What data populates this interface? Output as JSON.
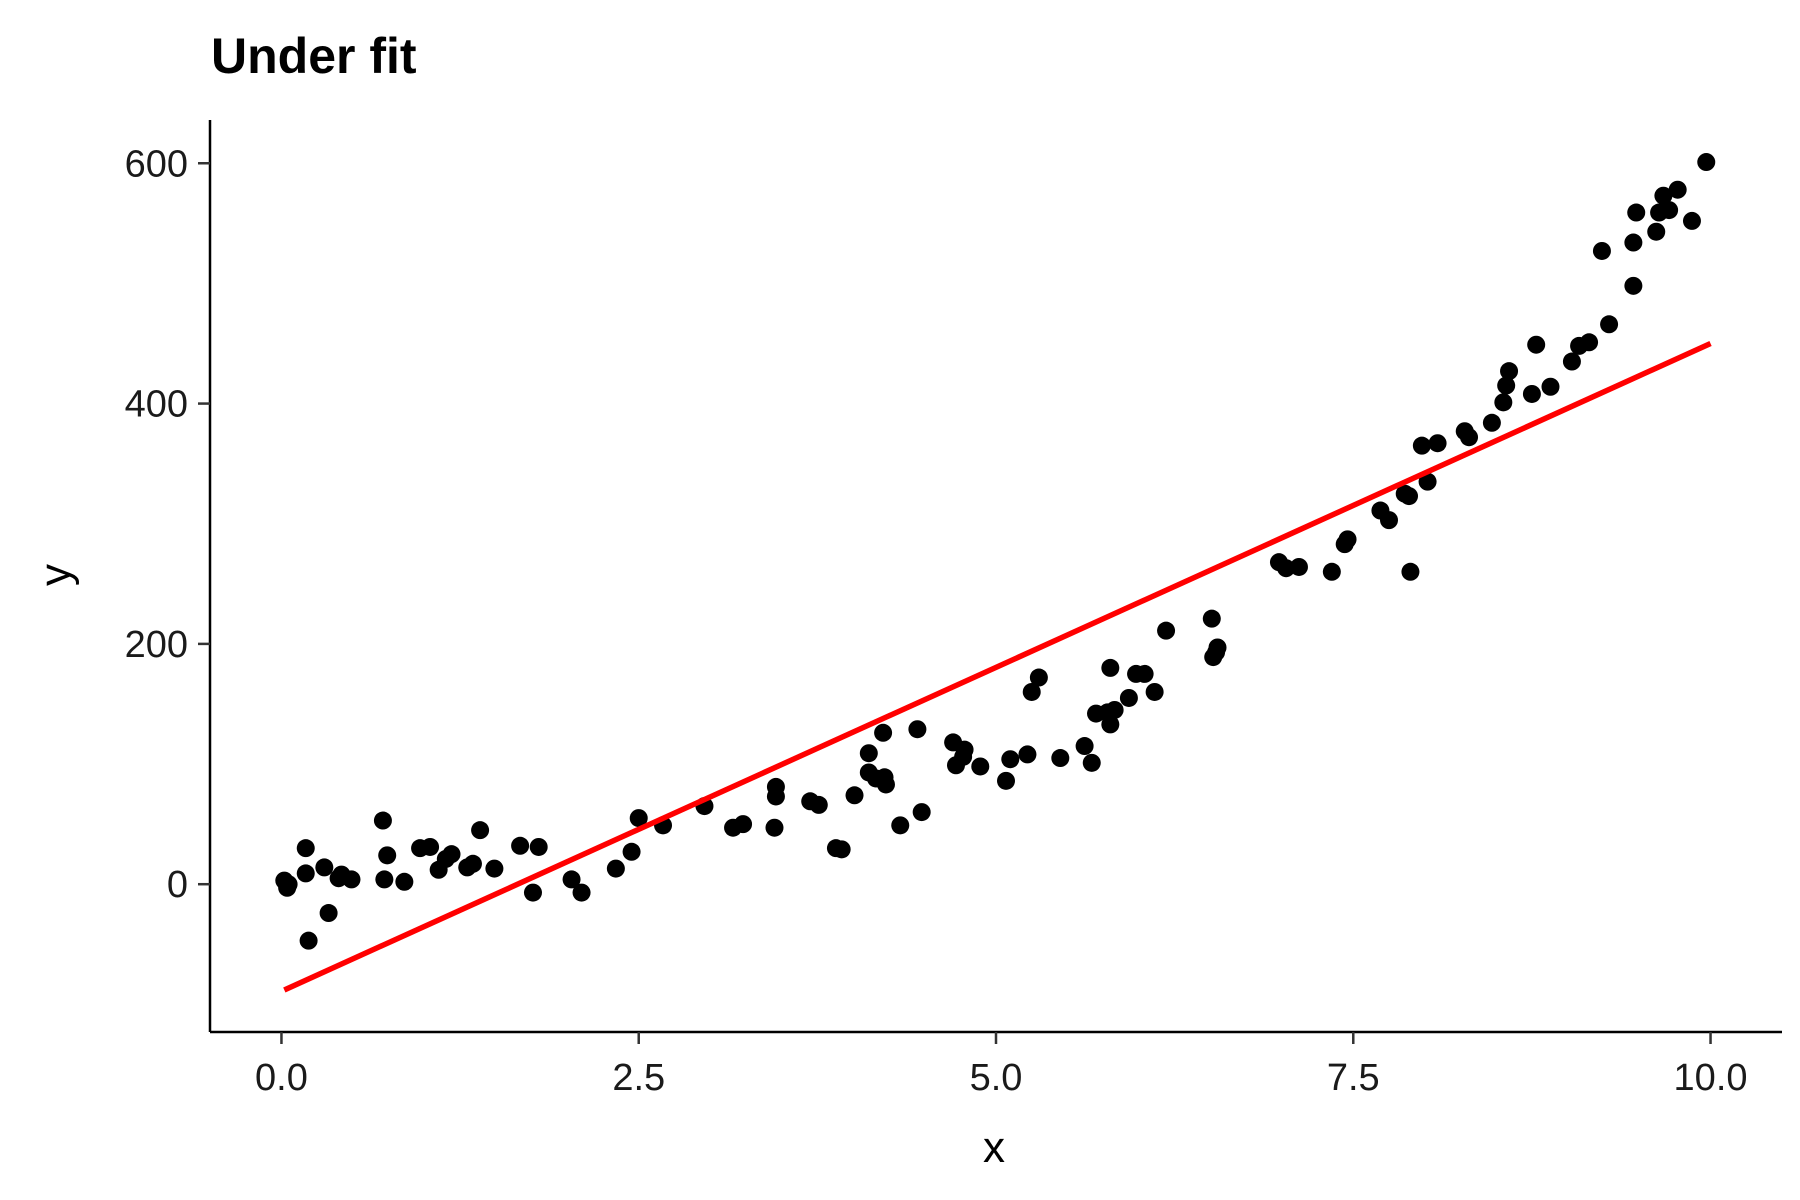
{
  "chart_data": {
    "type": "scatter",
    "title": "Under fit",
    "xlabel": "x",
    "ylabel": "y",
    "xlim": [
      -0.5,
      10.5
    ],
    "ylim": [
      -123,
      636
    ],
    "x_ticks": [
      0.0,
      2.5,
      5.0,
      7.5,
      10.0
    ],
    "x_tick_labels": [
      "0.0",
      "2.5",
      "5.0",
      "7.5",
      "10.0"
    ],
    "y_ticks": [
      0,
      200,
      400,
      600
    ],
    "y_tick_labels": [
      "0",
      "200",
      "400",
      "600"
    ],
    "grid": false,
    "series": [
      {
        "type": "scatter",
        "color": "#000000",
        "points": [
          [
            0.02,
            3
          ],
          [
            0.04,
            -3
          ],
          [
            0.05,
            0
          ],
          [
            0.17,
            30
          ],
          [
            0.17,
            9
          ],
          [
            0.19,
            -47
          ],
          [
            0.3,
            14
          ],
          [
            0.33,
            -24
          ],
          [
            0.4,
            5
          ],
          [
            0.42,
            8
          ],
          [
            0.49,
            4
          ],
          [
            0.71,
            53
          ],
          [
            0.72,
            4
          ],
          [
            0.74,
            24
          ],
          [
            0.86,
            2
          ],
          [
            0.97,
            30
          ],
          [
            1.04,
            31
          ],
          [
            1.1,
            12
          ],
          [
            1.15,
            21
          ],
          [
            1.19,
            25
          ],
          [
            1.3,
            14
          ],
          [
            1.34,
            17
          ],
          [
            1.39,
            45
          ],
          [
            1.49,
            13
          ],
          [
            1.67,
            32
          ],
          [
            1.76,
            -7
          ],
          [
            1.8,
            31
          ],
          [
            2.03,
            4
          ],
          [
            2.1,
            -7
          ],
          [
            2.34,
            13
          ],
          [
            2.45,
            27
          ],
          [
            2.5,
            55
          ],
          [
            2.67,
            49
          ],
          [
            2.96,
            65
          ],
          [
            3.16,
            47
          ],
          [
            3.23,
            50
          ],
          [
            3.45,
            47
          ],
          [
            3.46,
            73
          ],
          [
            3.46,
            81
          ],
          [
            3.7,
            69
          ],
          [
            3.76,
            66
          ],
          [
            3.88,
            30
          ],
          [
            3.92,
            29
          ],
          [
            4.01,
            74
          ],
          [
            4.11,
            109
          ],
          [
            4.11,
            93
          ],
          [
            4.16,
            88
          ],
          [
            4.21,
            126
          ],
          [
            4.22,
            89
          ],
          [
            4.23,
            83
          ],
          [
            4.33,
            49
          ],
          [
            4.45,
            129
          ],
          [
            4.48,
            60
          ],
          [
            4.7,
            118
          ],
          [
            4.72,
            99
          ],
          [
            4.77,
            106
          ],
          [
            4.78,
            112
          ],
          [
            4.89,
            98
          ],
          [
            5.07,
            86
          ],
          [
            5.1,
            104
          ],
          [
            5.22,
            108
          ],
          [
            5.25,
            160
          ],
          [
            5.3,
            172
          ],
          [
            5.45,
            105
          ],
          [
            5.62,
            115
          ],
          [
            5.67,
            101
          ],
          [
            5.7,
            142
          ],
          [
            5.78,
            143
          ],
          [
            5.8,
            180
          ],
          [
            5.8,
            133
          ],
          [
            5.83,
            145
          ],
          [
            5.93,
            155
          ],
          [
            5.98,
            175
          ],
          [
            6.04,
            175
          ],
          [
            6.11,
            160
          ],
          [
            6.19,
            211
          ],
          [
            6.51,
            221
          ],
          [
            6.52,
            189
          ],
          [
            6.54,
            193
          ],
          [
            6.55,
            197
          ],
          [
            6.98,
            268
          ],
          [
            7.03,
            263
          ],
          [
            7.12,
            264
          ],
          [
            7.35,
            260
          ],
          [
            7.44,
            283
          ],
          [
            7.46,
            287
          ],
          [
            7.69,
            311
          ],
          [
            7.75,
            303
          ],
          [
            7.86,
            325
          ],
          [
            7.89,
            323
          ],
          [
            7.9,
            260
          ],
          [
            7.98,
            365
          ],
          [
            8.02,
            335
          ],
          [
            8.09,
            367
          ],
          [
            8.28,
            377
          ],
          [
            8.31,
            372
          ],
          [
            8.47,
            384
          ],
          [
            8.55,
            401
          ],
          [
            8.57,
            415
          ],
          [
            8.59,
            427
          ],
          [
            8.75,
            408
          ],
          [
            8.78,
            449
          ],
          [
            8.88,
            414
          ],
          [
            9.03,
            435
          ],
          [
            9.08,
            448
          ],
          [
            9.15,
            451
          ],
          [
            9.24,
            527
          ],
          [
            9.29,
            466
          ],
          [
            9.46,
            498
          ],
          [
            9.46,
            534
          ],
          [
            9.48,
            559
          ],
          [
            9.62,
            543
          ],
          [
            9.64,
            559
          ],
          [
            9.67,
            573
          ],
          [
            9.71,
            561
          ],
          [
            9.77,
            578
          ],
          [
            9.87,
            552
          ],
          [
            9.97,
            601
          ]
        ]
      },
      {
        "type": "line",
        "color": "#ff0000",
        "points": [
          [
            0.02,
            -88
          ],
          [
            10.0,
            450
          ]
        ]
      }
    ]
  }
}
